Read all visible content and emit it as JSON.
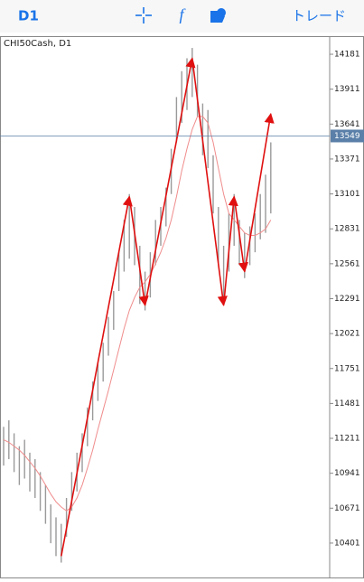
{
  "toolbar": {
    "timeframe": "D1",
    "function_icon": "f",
    "trade": "トレード"
  },
  "chart_data": {
    "type": "hilo",
    "label": "CHI50Cash, D1",
    "high": [
      11300,
      11350,
      11250,
      11150,
      11200,
      11100,
      11050,
      10950,
      10850,
      10700,
      10600,
      10550,
      10750,
      10950,
      11100,
      11250,
      11450,
      11650,
      11800,
      11950,
      12150,
      12350,
      12650,
      12900,
      13100,
      13000,
      12700,
      12500,
      12650,
      12900,
      13000,
      13150,
      13450,
      13850,
      14050,
      14150,
      14230,
      14100,
      13800,
      13750,
      13400,
      13000,
      12700,
      12950,
      13100,
      12900,
      12800,
      12850,
      12950,
      13100,
      13250,
      13500
    ],
    "low": [
      11000,
      11050,
      10950,
      10850,
      10900,
      10800,
      10750,
      10650,
      10550,
      10400,
      10300,
      10250,
      10450,
      10650,
      10800,
      10950,
      11150,
      11350,
      11500,
      11650,
      11850,
      12050,
      12350,
      12500,
      12600,
      12550,
      12250,
      12200,
      12300,
      12550,
      12700,
      12850,
      13100,
      13500,
      13650,
      13750,
      13850,
      13700,
      13400,
      13300,
      12950,
      12550,
      12250,
      12500,
      12700,
      12550,
      12450,
      12550,
      12650,
      12750,
      12800,
      12950
    ],
    "bar_color": "#9a9a9a",
    "ma": {
      "values": [
        11200,
        11180,
        11150,
        11120,
        11080,
        11030,
        10980,
        10920,
        10850,
        10780,
        10720,
        10680,
        10650,
        10680,
        10750,
        10850,
        10980,
        11120,
        11280,
        11430,
        11580,
        11740,
        11900,
        12060,
        12200,
        12300,
        12380,
        12420,
        12480,
        12560,
        12650,
        12760,
        12900,
        13080,
        13280,
        13450,
        13600,
        13700,
        13700,
        13650,
        13500,
        13300,
        13100,
        12950,
        12900,
        12850,
        12800,
        12780,
        12780,
        12800,
        12830,
        12900
      ],
      "color": "#f08c8c"
    },
    "zigzag": {
      "x": [
        11,
        24,
        27,
        36,
        42,
        44,
        46,
        51
      ],
      "values": [
        10300,
        13080,
        12240,
        14150,
        12240,
        13080,
        12500,
        13720
      ],
      "color": "#e01010"
    },
    "current_price": 13549,
    "current_color": "#5a7fa8",
    "ylim": [
      10128,
      14321
    ],
    "yticks": [
      10401,
      10671,
      10941,
      11211,
      11481,
      11751,
      12021,
      12291,
      12561,
      12831,
      13101,
      13371,
      13641,
      13911,
      14181
    ]
  }
}
